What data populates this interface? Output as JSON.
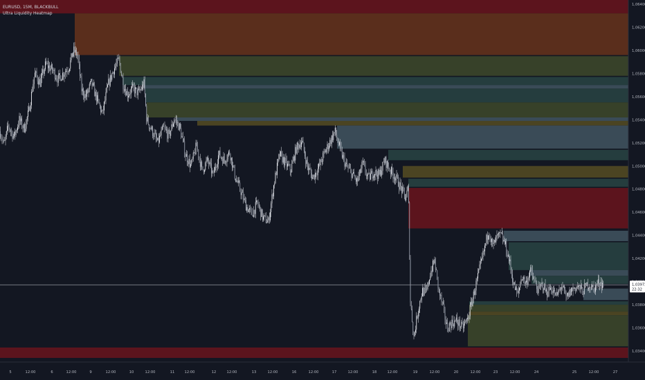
{
  "header": {
    "symbol_line": "EURUSD, 15M, BLACKBULL",
    "indicator_name": "Ultra Liquidity Heatmap"
  },
  "price_axis": {
    "ticks": [
      "1,06400",
      "1,06200",
      "1,06000",
      "1,05800",
      "1,05600",
      "1,05400",
      "1,05200",
      "1,05000",
      "1,04800",
      "1,04600",
      "1,04400",
      "1,04200",
      "1,04000",
      "1,03800",
      "1,03600",
      "1,03400"
    ]
  },
  "current_price": {
    "value": 1.03972,
    "label": "1,03972",
    "countdown": "22:32"
  },
  "time_axis": {
    "labels": [
      "5",
      "12:00",
      "6",
      "12:00",
      "9",
      "12:00",
      "10",
      "12:00",
      "11",
      "12:00",
      "12",
      "12:00",
      "13",
      "12:00",
      "16",
      "12:00",
      "17",
      "12:00",
      "18",
      "12:00",
      "19",
      "12:00",
      "20",
      "12:00",
      "23",
      "12:00",
      "24",
      "25",
      "12:00",
      "27"
    ]
  },
  "colors": {
    "background": "#131722",
    "red_zone": "#5c141d",
    "orange_zone": "#5a2e1c",
    "olive_zone": "#374129",
    "teal_zone": "#253d3e",
    "slate_zone": "#3a4b57",
    "yellow_zone": "#4b4422",
    "candle": "#e6e8ee"
  },
  "chart_data": {
    "type": "candlestick",
    "title": "EURUSD, 15M, BLACKBULL",
    "indicator": "Ultra Liquidity Heatmap",
    "ylim": [
      1.0333,
      1.0655
    ],
    "last_price": 1.03972,
    "zones": [
      {
        "color": "red",
        "price_low": 1.064,
        "price_high": 1.0655,
        "start_label": "5"
      },
      {
        "color": "red",
        "price_low": 1.0632,
        "price_high": 1.064,
        "start_label": "5"
      },
      {
        "color": "orange",
        "price_low": 1.0596,
        "price_high": 1.0632,
        "start_label": "12:00"
      },
      {
        "color": "olive",
        "price_low": 1.0578,
        "price_high": 1.0595,
        "start_label": "9"
      },
      {
        "color": "teal",
        "price_low": 1.057,
        "price_high": 1.0577,
        "start_label": "9"
      },
      {
        "color": "slate",
        "price_low": 1.0567,
        "price_high": 1.057,
        "start_label": "10"
      },
      {
        "color": "teal",
        "price_low": 1.0555,
        "price_high": 1.0567,
        "start_label": "10"
      },
      {
        "color": "olive",
        "price_low": 1.0542,
        "price_high": 1.0555,
        "start_label": "10"
      },
      {
        "color": "slate",
        "price_low": 1.0539,
        "price_high": 1.0542,
        "start_label": "11"
      },
      {
        "color": "yellow",
        "price_low": 1.0535,
        "price_high": 1.0539,
        "start_label": "12"
      },
      {
        "color": "slate",
        "price_low": 1.0515,
        "price_high": 1.0535,
        "start_label": "17"
      },
      {
        "color": "teal",
        "price_low": 1.0505,
        "price_high": 1.0514,
        "start_label": "12:00"
      },
      {
        "color": "yellow",
        "price_low": 1.049,
        "price_high": 1.05,
        "start_label": "18"
      },
      {
        "color": "teal",
        "price_low": 1.0482,
        "price_high": 1.0489,
        "start_label": "18"
      },
      {
        "color": "red",
        "price_low": 1.0446,
        "price_high": 1.0481,
        "start_label": "19"
      },
      {
        "color": "slate",
        "price_low": 1.0435,
        "price_high": 1.0444,
        "start_label": "23"
      },
      {
        "color": "teal",
        "price_low": 1.041,
        "price_high": 1.0434,
        "start_label": "23"
      },
      {
        "color": "slate",
        "price_low": 1.0405,
        "price_high": 1.041,
        "start_label": "24"
      },
      {
        "color": "teal",
        "price_low": 1.0398,
        "price_high": 1.0405,
        "start_label": "24"
      },
      {
        "color": "slate",
        "price_low": 1.0384,
        "price_high": 1.0394,
        "start_label": "25"
      },
      {
        "color": "teal",
        "price_low": 1.038,
        "price_high": 1.0383,
        "start_label": "12:00"
      },
      {
        "color": "olive",
        "price_low": 1.0374,
        "price_high": 1.038,
        "start_label": "12:00"
      },
      {
        "color": "yellow",
        "price_low": 1.0371,
        "price_high": 1.0374,
        "start_label": "12:00"
      },
      {
        "color": "olive",
        "price_low": 1.0344,
        "price_high": 1.0371,
        "start_label": "12:00"
      },
      {
        "color": "red",
        "price_low": 1.0334,
        "price_high": 1.0343,
        "start_label": "5"
      }
    ],
    "price_path": [
      [
        0,
        1.053
      ],
      [
        6,
        1.0518
      ],
      [
        12,
        1.0535
      ],
      [
        20,
        1.0525
      ],
      [
        28,
        1.054
      ],
      [
        35,
        1.0532
      ],
      [
        42,
        1.0548
      ],
      [
        50,
        1.058
      ],
      [
        58,
        1.0572
      ],
      [
        66,
        1.0588
      ],
      [
        76,
        1.0583
      ],
      [
        84,
        1.0575
      ],
      [
        94,
        1.0582
      ],
      [
        100,
        1.0586
      ],
      [
        106,
        1.06
      ],
      [
        112,
        1.0596
      ],
      [
        118,
        1.0566
      ],
      [
        124,
        1.056
      ],
      [
        132,
        1.0572
      ],
      [
        140,
        1.0558
      ],
      [
        148,
        1.0545
      ],
      [
        156,
        1.057
      ],
      [
        164,
        1.0583
      ],
      [
        172,
        1.0592
      ],
      [
        178,
        1.0571
      ],
      [
        184,
        1.0562
      ],
      [
        192,
        1.0567
      ],
      [
        200,
        1.0563
      ],
      [
        208,
        1.0571
      ],
      [
        212,
        1.054
      ],
      [
        220,
        1.053
      ],
      [
        228,
        1.052
      ],
      [
        236,
        1.0533
      ],
      [
        244,
        1.0526
      ],
      [
        252,
        1.0541
      ],
      [
        260,
        1.0533
      ],
      [
        268,
        1.051
      ],
      [
        276,
        1.05
      ],
      [
        284,
        1.0518
      ],
      [
        292,
        1.0496
      ],
      [
        300,
        1.0505
      ],
      [
        308,
        1.0492
      ],
      [
        316,
        1.051
      ],
      [
        324,
        1.0505
      ],
      [
        332,
        1.0512
      ],
      [
        340,
        1.049
      ],
      [
        348,
        1.0478
      ],
      [
        356,
        1.0465
      ],
      [
        364,
        1.0458
      ],
      [
        372,
        1.0468
      ],
      [
        380,
        1.0455
      ],
      [
        388,
        1.0452
      ],
      [
        396,
        1.0485
      ],
      [
        404,
        1.051
      ],
      [
        412,
        1.0503
      ],
      [
        420,
        1.0496
      ],
      [
        428,
        1.0515
      ],
      [
        436,
        1.0522
      ],
      [
        444,
        1.05
      ],
      [
        452,
        1.049
      ],
      [
        460,
        1.0498
      ],
      [
        468,
        1.051
      ],
      [
        476,
        1.052
      ],
      [
        484,
        1.053
      ],
      [
        492,
        1.0513
      ],
      [
        500,
        1.05
      ],
      [
        508,
        1.0494
      ],
      [
        516,
        1.0486
      ],
      [
        524,
        1.0502
      ],
      [
        532,
        1.0489
      ],
      [
        540,
        1.0495
      ],
      [
        548,
        1.0492
      ],
      [
        556,
        1.0505
      ],
      [
        564,
        1.0496
      ],
      [
        572,
        1.049
      ],
      [
        580,
        1.048
      ],
      [
        586,
        1.0472
      ],
      [
        590,
        1.0482
      ],
      [
        593,
        1.0383
      ],
      [
        598,
        1.0352
      ],
      [
        604,
        1.0375
      ],
      [
        610,
        1.0392
      ],
      [
        616,
        1.039
      ],
      [
        622,
        1.0408
      ],
      [
        628,
        1.0418
      ],
      [
        634,
        1.0392
      ],
      [
        640,
        1.0378
      ],
      [
        646,
        1.036
      ],
      [
        652,
        1.0364
      ],
      [
        660,
        1.0366
      ],
      [
        668,
        1.036
      ],
      [
        676,
        1.0368
      ],
      [
        682,
        1.0383
      ],
      [
        688,
        1.0398
      ],
      [
        694,
        1.0413
      ],
      [
        700,
        1.0428
      ],
      [
        706,
        1.0445
      ],
      [
        712,
        1.043
      ],
      [
        718,
        1.0438
      ],
      [
        724,
        1.044
      ],
      [
        730,
        1.0432
      ],
      [
        736,
        1.0418
      ],
      [
        742,
        1.0398
      ],
      [
        748,
        1.0388
      ],
      [
        754,
        1.0405
      ],
      [
        760,
        1.0398
      ],
      [
        766,
        1.041
      ],
      [
        772,
        1.04
      ],
      [
        778,
        1.0392
      ],
      [
        784,
        1.0398
      ],
      [
        790,
        1.039
      ],
      [
        796,
        1.0395
      ],
      [
        804,
        1.0387
      ],
      [
        812,
        1.0397
      ],
      [
        818,
        1.0385
      ],
      [
        826,
        1.0393
      ],
      [
        834,
        1.0396
      ],
      [
        842,
        1.0392
      ],
      [
        850,
        1.0398
      ],
      [
        858,
        1.0394
      ],
      [
        866,
        1.04
      ],
      [
        872,
        1.0397
      ]
    ]
  }
}
